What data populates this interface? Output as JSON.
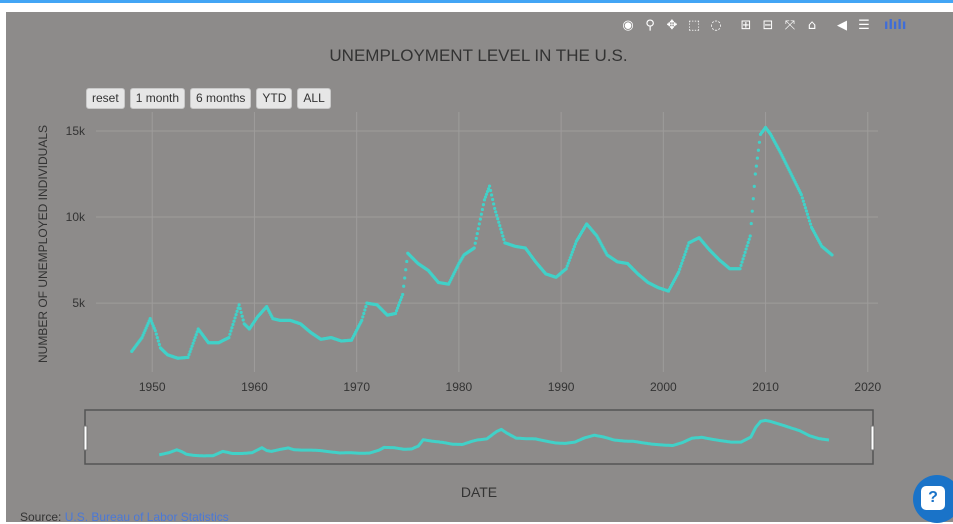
{
  "modebar": [
    {
      "name": "camera-icon",
      "glyph": "◉"
    },
    {
      "name": "zoom-icon",
      "glyph": "⚲"
    },
    {
      "name": "pan-icon",
      "glyph": "✥"
    },
    {
      "name": "box-select-icon",
      "glyph": "⬚"
    },
    {
      "name": "lasso-select-icon",
      "glyph": "◌"
    },
    {
      "name": "zoom-in-icon",
      "glyph": "⊞"
    },
    {
      "name": "zoom-out-icon",
      "glyph": "⊟"
    },
    {
      "name": "autoscale-icon",
      "glyph": "⤧"
    },
    {
      "name": "reset-axes-icon",
      "glyph": "⌂"
    },
    {
      "name": "spike-lines-icon",
      "glyph": "◀"
    },
    {
      "name": "compare-data-icon",
      "glyph": "☰"
    },
    {
      "name": "plotly-logo-icon",
      "glyph": "ılılı"
    }
  ],
  "range_buttons": [
    "reset",
    "1 month",
    "6 months",
    "YTD",
    "ALL"
  ],
  "source": {
    "label": "Source: ",
    "link_text": "U.S. Bureau of Labor Statistics"
  },
  "colors": {
    "background": "#8d8b8a",
    "marker": "#41d1c8",
    "grid": "#9e9c9b",
    "text": "#333333",
    "accent": "#42a5f5",
    "help": "#1a73c8"
  },
  "chart_data": {
    "type": "scatter",
    "title": "UNEMPLOYMENT LEVEL IN THE U.S.",
    "xlabel": "DATE",
    "ylabel": "NUMBER OF UNEMPLOYED INDIVIDUALS",
    "xlim": [
      1944.5,
      2021
    ],
    "ylim": [
      1000,
      16100
    ],
    "x_ticks": [
      1950,
      1960,
      1970,
      1980,
      1990,
      2000,
      2010,
      2020
    ],
    "y_ticks": [
      5000,
      10000,
      15000
    ],
    "y_tick_labels": [
      "5k",
      "10k",
      "15k"
    ],
    "grid": true,
    "range_slider": true,
    "x": [
      1948.0,
      1949.0,
      1949.8,
      1950.3,
      1950.8,
      1951.5,
      1952.5,
      1953.5,
      1953.9,
      1954.5,
      1955.5,
      1956.5,
      1957.5,
      1958.5,
      1959.0,
      1959.5,
      1960.3,
      1961.2,
      1961.8,
      1962.5,
      1963.5,
      1964.5,
      1965.5,
      1966.5,
      1967.5,
      1968.5,
      1969.5,
      1970.5,
      1971.0,
      1972.0,
      1973.0,
      1973.8,
      1974.5,
      1975.0,
      1975.5,
      1976.0,
      1977.0,
      1978.0,
      1979.0,
      1980.0,
      1980.5,
      1981.5,
      1982.5,
      1983.0,
      1983.5,
      1984.5,
      1985.5,
      1986.5,
      1987.5,
      1988.5,
      1989.5,
      1990.5,
      1991.5,
      1992.5,
      1993.5,
      1994.5,
      1995.5,
      1996.5,
      1997.5,
      1998.5,
      1999.5,
      2000.5,
      2001.5,
      2002.5,
      2003.5,
      2004.5,
      2005.5,
      2006.5,
      2007.5,
      2008.5,
      2009.0,
      2009.5,
      2010.0,
      2010.5,
      2011.5,
      2012.5,
      2013.5,
      2014.5,
      2015.5,
      2016.5
    ],
    "y": [
      2200,
      3000,
      4100,
      3400,
      2400,
      2000,
      1800,
      1850,
      2500,
      3500,
      2700,
      2700,
      3000,
      4900,
      3800,
      3500,
      4200,
      4800,
      4100,
      4000,
      4000,
      3800,
      3300,
      2900,
      3000,
      2800,
      2850,
      4000,
      5000,
      4900,
      4300,
      4400,
      5500,
      7900,
      7600,
      7300,
      6900,
      6200,
      6100,
      7300,
      7800,
      8200,
      11000,
      11800,
      10500,
      8500,
      8300,
      8200,
      7400,
      6700,
      6500,
      7000,
      8600,
      9600,
      8900,
      7800,
      7400,
      7300,
      6700,
      6200,
      5900,
      5700,
      6800,
      8500,
      8800,
      8100,
      7500,
      7000,
      7000,
      8900,
      12500,
      14800,
      15200,
      14800,
      13700,
      12500,
      11300,
      9400,
      8300,
      7800
    ]
  }
}
